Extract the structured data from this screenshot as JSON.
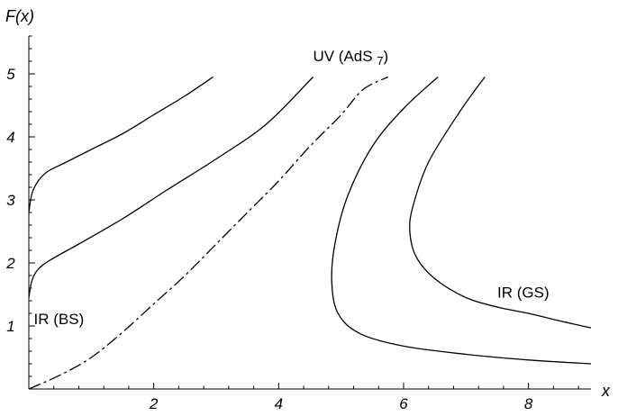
{
  "chart_data": {
    "type": "line",
    "title": "",
    "xlabel": "x",
    "ylabel": "F(x)",
    "xlim": [
      0,
      9
    ],
    "ylim": [
      0,
      5.6
    ],
    "x_ticks": [
      2,
      4,
      6,
      8
    ],
    "y_ticks": [
      1,
      2,
      3,
      4,
      5
    ],
    "grid": false,
    "series": [
      {
        "dash": "solid",
        "points": [
          [
            0,
            2.8
          ],
          [
            0.05,
            3.1
          ],
          [
            0.15,
            3.3
          ],
          [
            0.3,
            3.45
          ],
          [
            0.6,
            3.6
          ],
          [
            1.0,
            3.8
          ],
          [
            1.5,
            4.05
          ],
          [
            2.0,
            4.35
          ],
          [
            2.5,
            4.65
          ],
          [
            2.95,
            4.95
          ]
        ]
      },
      {
        "dash": "solid",
        "points": [
          [
            0,
            1.45
          ],
          [
            0.05,
            1.72
          ],
          [
            0.15,
            1.9
          ],
          [
            0.35,
            2.05
          ],
          [
            0.8,
            2.3
          ],
          [
            1.5,
            2.7
          ],
          [
            2.2,
            3.15
          ],
          [
            3.0,
            3.65
          ],
          [
            3.8,
            4.2
          ],
          [
            4.55,
            4.95
          ]
        ]
      },
      {
        "dash": "dashdot",
        "points": [
          [
            0,
            0
          ],
          [
            0.5,
            0.22
          ],
          [
            1.0,
            0.5
          ],
          [
            1.5,
            0.9
          ],
          [
            2.0,
            1.35
          ],
          [
            2.5,
            1.8
          ],
          [
            3.0,
            2.3
          ],
          [
            3.5,
            2.8
          ],
          [
            4.0,
            3.3
          ],
          [
            4.5,
            3.85
          ],
          [
            5.0,
            4.35
          ],
          [
            5.35,
            4.75
          ],
          [
            5.75,
            4.95
          ]
        ]
      },
      {
        "dash": "solid",
        "points": [
          [
            6.55,
            4.95
          ],
          [
            6.0,
            4.45
          ],
          [
            5.5,
            3.85
          ],
          [
            5.1,
            3.05
          ],
          [
            4.9,
            2.3
          ],
          [
            4.85,
            1.7
          ],
          [
            4.95,
            1.2
          ],
          [
            5.3,
            0.88
          ],
          [
            6.0,
            0.68
          ],
          [
            7.0,
            0.55
          ],
          [
            8.0,
            0.46
          ],
          [
            9.0,
            0.4
          ]
        ]
      },
      {
        "dash": "solid",
        "points": [
          [
            7.3,
            4.95
          ],
          [
            6.9,
            4.4
          ],
          [
            6.4,
            3.6
          ],
          [
            6.15,
            2.9
          ],
          [
            6.1,
            2.5
          ],
          [
            6.2,
            2.1
          ],
          [
            6.5,
            1.75
          ],
          [
            7.0,
            1.45
          ],
          [
            7.5,
            1.3
          ],
          [
            8.0,
            1.2
          ],
          [
            8.5,
            1.08
          ],
          [
            9.0,
            0.97
          ]
        ]
      }
    ],
    "annotations": [
      {
        "id": "uv",
        "text": "UV (AdS",
        "sub": "7",
        "close": ")",
        "x": 4.55,
        "y": 5.2
      },
      {
        "id": "ir-bs",
        "text": "IR (BS)",
        "x": 0.08,
        "y": 1.03
      },
      {
        "id": "ir-gs",
        "text": "IR (GS)",
        "x": 7.5,
        "y": 1.45
      }
    ]
  }
}
